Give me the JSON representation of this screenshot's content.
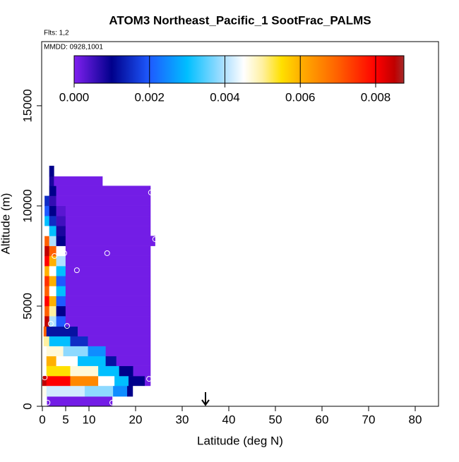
{
  "chart_data": {
    "type": "curtain",
    "title": "ATOM3 Northeast_Pacific_1 SootFrac_PALMS",
    "flights_label": "Flts: 1,2",
    "dates_label": "MMDD: 0928,1001",
    "x_label": "Latitude (deg N)",
    "y_label": "Altitude (m)",
    "xlim": [
      0,
      85
    ],
    "ylim": [
      0,
      18200
    ],
    "xticks": [
      0,
      5,
      10,
      20,
      30,
      40,
      50,
      60,
      70,
      80
    ],
    "yticks": [
      0,
      5000,
      10000,
      15000
    ],
    "zlim": [
      0,
      0.00875
    ],
    "zticks": [
      {
        "value": 0,
        "label": "0.000"
      },
      {
        "value": 0.002,
        "label": "0.002"
      },
      {
        "value": 0.004,
        "label": "0.004"
      },
      {
        "value": 0.006,
        "label": "0.006"
      },
      {
        "value": 0.008,
        "label": "0.008"
      }
    ],
    "colorscale": {
      "values": [
        0,
        0.001,
        0.002,
        0.003,
        0.004,
        0.0045,
        0.005,
        0.0055,
        0.006,
        0.007,
        0.008,
        0.0085,
        0.00875
      ],
      "colors": [
        "#8020f0",
        "#00008b",
        "#1e5aff",
        "#00bfff",
        "#b0e0ff",
        "#ffffff",
        "#fff0a0",
        "#ffe000",
        "#ffb000",
        "#ff6000",
        "#ff0000",
        "#c00000",
        "#a52a2a"
      ]
    },
    "rows": [
      {
        "alt": [
          0,
          490
        ],
        "lat": [
          1,
          15
        ],
        "values": [
          0.0001
        ]
      },
      {
        "alt": [
          490,
          1020
        ],
        "lat": [
          0,
          0.9,
          9.1,
          15.2,
          18.2,
          19.4
        ],
        "values": [
          0.0046,
          0.0042,
          0.0038,
          0.0025,
          0.001
        ]
      },
      {
        "alt": [
          1020,
          1510
        ],
        "lat": [
          0,
          0.9,
          6,
          12,
          15.5,
          18.5,
          22,
          23.2
        ],
        "values": [
          0.0085,
          0.008,
          0.0065,
          0.0045,
          0.003,
          0.001,
          0.0001
        ]
      },
      {
        "alt": [
          1510,
          2010
        ],
        "lat": [
          0.9,
          6,
          12,
          16.5,
          19.5,
          23.2
        ],
        "values": [
          0.0055,
          0.0047,
          0.003,
          0.001,
          0.0001
        ]
      },
      {
        "alt": [
          2010,
          2500
        ],
        "lat": [
          0.9,
          3,
          7.6,
          13.6,
          15.9,
          23.2
        ],
        "values": [
          0.006,
          0.0045,
          0.003,
          0.0012,
          0.0001
        ]
      },
      {
        "alt": [
          2500,
          3000
        ],
        "lat": [
          0.9,
          4.5,
          9.8,
          13.6,
          23.2
        ],
        "values": [
          0.0047,
          0.0038,
          0.0025,
          0.0001
        ]
      },
      {
        "alt": [
          3000,
          3490
        ],
        "lat": [
          0.3,
          1.5,
          6,
          9.8,
          23.2
        ],
        "values": [
          0.005,
          0.003,
          0.0015,
          0.0001
        ]
      },
      {
        "alt": [
          3490,
          3980
        ],
        "lat": [
          0.3,
          0.9,
          7.6,
          23.2
        ],
        "values": [
          0.007,
          0.0012,
          0.0001
        ]
      },
      {
        "alt": [
          3980,
          4500
        ],
        "lat": [
          0.5,
          1.5,
          3,
          5,
          23.2
        ],
        "values": [
          0.0085,
          0.004,
          0.002,
          0.0001
        ]
      },
      {
        "alt": [
          4500,
          5000
        ],
        "lat": [
          0.5,
          1.5,
          3,
          5,
          23.2
        ],
        "values": [
          0.007,
          0.005,
          0.001,
          0.0001
        ]
      },
      {
        "alt": [
          5000,
          5500
        ],
        "lat": [
          0.5,
          1.5,
          3,
          5,
          23.2
        ],
        "values": [
          0.008,
          0.006,
          0.002,
          0.0001
        ]
      },
      {
        "alt": [
          5500,
          6000
        ],
        "lat": [
          0.5,
          1.5,
          3,
          5,
          23.2
        ],
        "values": [
          0.007,
          0.0045,
          0.003,
          0.0001
        ]
      },
      {
        "alt": [
          6000,
          6500
        ],
        "lat": [
          0.5,
          1.5,
          3,
          5,
          23.2
        ],
        "values": [
          0.0075,
          0.006,
          0.002,
          0.0001
        ]
      },
      {
        "alt": [
          6500,
          7000
        ],
        "lat": [
          0.5,
          1.5,
          3,
          5,
          23.2
        ],
        "values": [
          0.006,
          0.0045,
          0.003,
          0.0001
        ]
      },
      {
        "alt": [
          7000,
          7500
        ],
        "lat": [
          0.5,
          1.5,
          3,
          5,
          23.2
        ],
        "values": [
          0.008,
          0.006,
          0.004,
          0.0001
        ]
      },
      {
        "alt": [
          7500,
          8000
        ],
        "lat": [
          0.5,
          1.5,
          3,
          5,
          23.2
        ],
        "values": [
          0.0085,
          0.007,
          0.0045,
          0.0001
        ]
      },
      {
        "alt": [
          8000,
          8500
        ],
        "lat": [
          0.5,
          1.5,
          3,
          5,
          24.2
        ],
        "values": [
          0.007,
          0.004,
          0.001,
          0.0001
        ]
      },
      {
        "alt": [
          8500,
          9000
        ],
        "lat": [
          0.5,
          1.5,
          3,
          5,
          23.2
        ],
        "values": [
          0.0045,
          0.003,
          0.0008,
          0.0001
        ]
      },
      {
        "alt": [
          9000,
          9500
        ],
        "lat": [
          0.5,
          1.5,
          3,
          5,
          23.2
        ],
        "values": [
          0.003,
          0.0015,
          0.0005,
          0.0001
        ]
      },
      {
        "alt": [
          9500,
          10000
        ],
        "lat": [
          0.5,
          1.5,
          3,
          5,
          23.2
        ],
        "values": [
          0.002,
          0.001,
          0.0003,
          0.0001
        ]
      },
      {
        "alt": [
          10000,
          10500
        ],
        "lat": [
          0.5,
          1.5,
          3,
          23.2
        ],
        "values": [
          0.0015,
          0.0006,
          0.0001
        ]
      },
      {
        "alt": [
          10500,
          11000
        ],
        "lat": [
          1.5,
          3,
          23.2
        ],
        "values": [
          0.001,
          0.0001
        ]
      },
      {
        "alt": [
          11000,
          11470
        ],
        "lat": [
          1.5,
          2.5,
          12.9
        ],
        "values": [
          0.0008,
          0.0001
        ]
      },
      {
        "alt": [
          11470,
          12000
        ],
        "lat": [
          1.5,
          2.5
        ],
        "values": [
          0.001
        ]
      }
    ],
    "points": {
      "lat": [
        0.5,
        22.9,
        1.1,
        15,
        1.8,
        5.3,
        4.7,
        2.6,
        7.4,
        13.9,
        23.3,
        24.2
      ],
      "alt": [
        1440,
        1370,
        180,
        180,
        4120,
        4010,
        7640,
        7500,
        6790,
        7640,
        10670,
        8340
      ]
    },
    "arrow_lat": 35
  }
}
